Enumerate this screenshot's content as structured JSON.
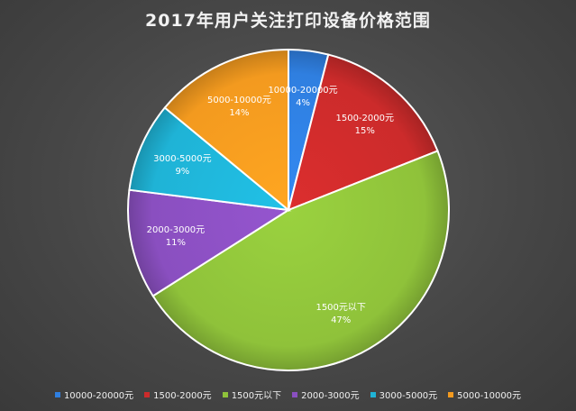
{
  "chart_data": {
    "type": "pie",
    "title": "2017年用户关注打印设备价格范围",
    "slices": [
      {
        "name": "10000-20000元",
        "value": 4,
        "label": "4%",
        "color": "#2f7fe0"
      },
      {
        "name": "1500-2000元",
        "value": 15,
        "label": "15%",
        "color": "#cc2b2b"
      },
      {
        "name": "1500元以下",
        "value": 47,
        "label": "47%",
        "color": "#8fc23a"
      },
      {
        "name": "2000-3000元",
        "value": 11,
        "label": "11%",
        "color": "#8a4fc0"
      },
      {
        "name": "3000-5000元",
        "value": 9,
        "label": "9%",
        "color": "#1fb3d6"
      },
      {
        "name": "5000-10000元",
        "value": 14,
        "label": "14%",
        "color": "#f39a1f"
      }
    ],
    "legend": [
      "10000-20000元",
      "1500-2000元",
      "1500元以下",
      "2000-3000元",
      "3000-5000元",
      "5000-10000元"
    ],
    "legend_position": "bottom"
  }
}
